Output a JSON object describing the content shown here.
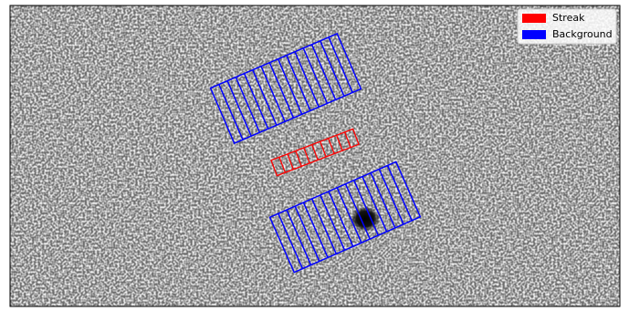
{
  "chart_data": {
    "type": "image",
    "legend": "upper right",
    "series": [
      {
        "name": "Streak",
        "color": "#ff0000"
      },
      {
        "name": "Background",
        "color": "#0000ff"
      }
    ]
  }
}
